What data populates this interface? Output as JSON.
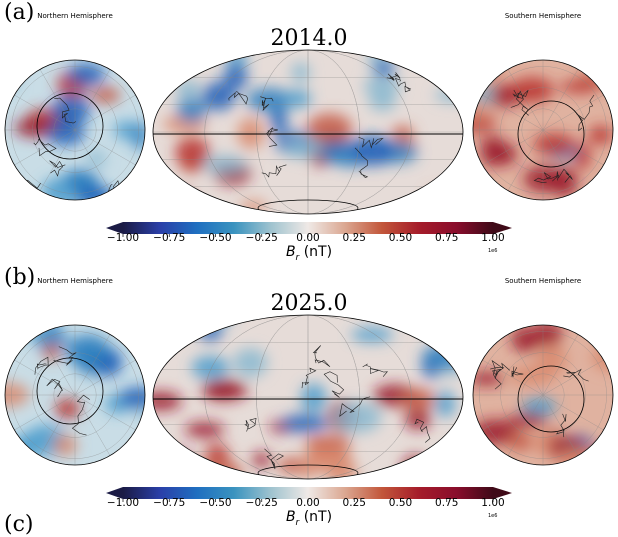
{
  "panels": [
    {
      "label": "(a)",
      "title": "2014.0",
      "left_map_title": "Northern Hemisphere",
      "right_map_title": "Southern Hemisphere"
    },
    {
      "label": "(b)",
      "title": "2025.0",
      "left_map_title": "Northern Hemisphere",
      "right_map_title": "Southern Hemisphere"
    }
  ],
  "colorbar": {
    "ticks": [
      "−1.00",
      "−0.75",
      "−0.50",
      "−0.25",
      "0.00",
      "0.25",
      "0.50",
      "0.75",
      "1.00"
    ],
    "label_var": "B",
    "label_sub": "r",
    "label_unit": " (nT)",
    "exponent": "1e6",
    "range": [
      -1000000,
      1000000
    ],
    "colors": [
      "#1b1b45",
      "#2a3fa8",
      "#1f6fc0",
      "#3a93bf",
      "#9fc3cf",
      "#efe9e6",
      "#dba791",
      "#c2563a",
      "#a51c2a",
      "#8a0d2c",
      "#3f0a18"
    ]
  },
  "next_label": "(c)"
}
